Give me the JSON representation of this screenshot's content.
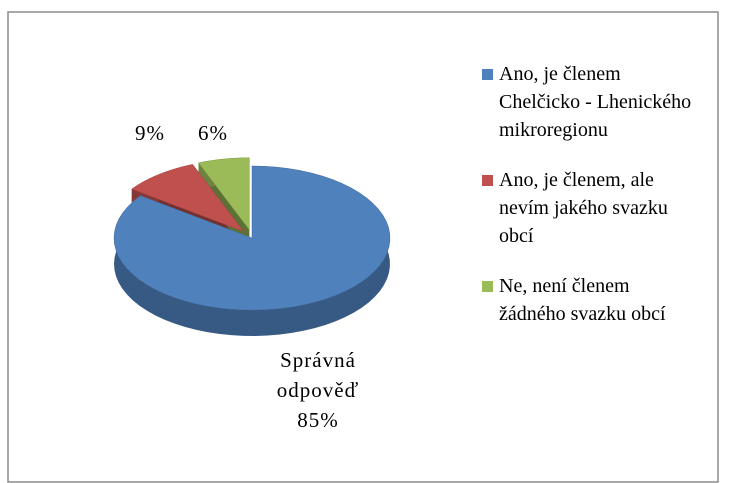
{
  "chart_data": {
    "type": "pie",
    "categories": [
      "Ano, je členem Chelčicko - Lhenického mikroregionu",
      "Ano, je členem, ale nevím jakého svazku obcí",
      "Ne, není členem žádného svazku obcí"
    ],
    "values": [
      85,
      9,
      6
    ],
    "value_labels": [
      "85%",
      "9%",
      "6%"
    ],
    "colors": [
      "#4f81bd",
      "#c0504d",
      "#9bbb59"
    ],
    "annotation": "Správná odpověď",
    "legend": "right"
  }
}
